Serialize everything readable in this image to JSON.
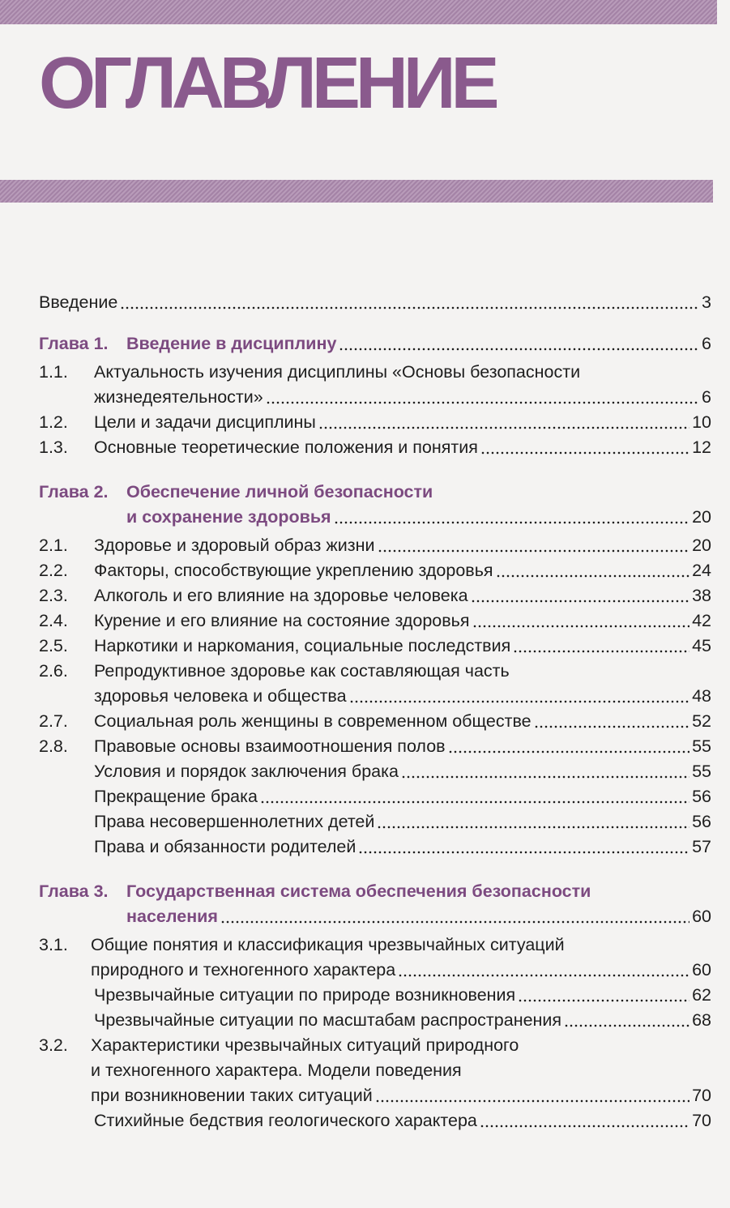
{
  "title": "ОГЛАВЛЕНИЕ",
  "accent_color": "#8a5a8d",
  "entries": [
    {
      "type": "intro",
      "num": "",
      "lines": [
        "Введение"
      ],
      "page": "3"
    },
    {
      "type": "ch",
      "num": "Глава 1.",
      "lines": [
        "Введение в дисциплину"
      ],
      "page": "6"
    },
    {
      "type": "sec",
      "num": "1.1.",
      "lines": [
        "Актуальность изучения дисциплины «Основы безопасности",
        "жизнедеятельности»"
      ],
      "page": "6"
    },
    {
      "type": "sec",
      "num": "1.2.",
      "lines": [
        "Цели и задачи дисциплины"
      ],
      "page": "10"
    },
    {
      "type": "sec",
      "num": "1.3.",
      "lines": [
        "Основные теоретические положения и понятия"
      ],
      "page": "12"
    },
    {
      "type": "ch",
      "num": "Глава 2.",
      "lines": [
        "Обеспечение личной безопасности",
        "и сохранение здоровья"
      ],
      "page": "20"
    },
    {
      "type": "sec",
      "num": "2.1.",
      "lines": [
        "Здоровье и здоровый образ жизни"
      ],
      "page": "20"
    },
    {
      "type": "sec",
      "num": "2.2.",
      "lines": [
        "Факторы, способствующие укреплению здоровья"
      ],
      "page": "24"
    },
    {
      "type": "sec",
      "num": "2.3.",
      "lines": [
        "Алкоголь и его влияние на здоровье человека"
      ],
      "page": "38"
    },
    {
      "type": "sec",
      "num": "2.4.",
      "lines": [
        "Курение и его влияние на состояние здоровья"
      ],
      "page": "42"
    },
    {
      "type": "sec",
      "num": "2.5.",
      "lines": [
        "Наркотики и наркомания, социальные последствия"
      ],
      "page": "45"
    },
    {
      "type": "sec",
      "num": "2.6.",
      "lines": [
        "Репродуктивное здоровье как составляющая часть",
        "здоровья человека и общества"
      ],
      "page": "48"
    },
    {
      "type": "sec",
      "num": "2.7.",
      "lines": [
        "Социальная роль женщины в современном обществе"
      ],
      "page": "52"
    },
    {
      "type": "sec",
      "num": "2.8.",
      "lines": [
        "Правовые основы взаимоотношения полов"
      ],
      "page": "55"
    },
    {
      "type": "sub",
      "num": "",
      "lines": [
        "Условия и порядок заключения брака"
      ],
      "page": "55"
    },
    {
      "type": "sub",
      "num": "",
      "lines": [
        "Прекращение брака"
      ],
      "page": "56"
    },
    {
      "type": "sub",
      "num": "",
      "lines": [
        "Права несовершеннолетних детей"
      ],
      "page": "56"
    },
    {
      "type": "sub",
      "num": "",
      "lines": [
        "Права и обязанности родителей"
      ],
      "page": "57"
    },
    {
      "type": "ch",
      "num": "Глава 3.",
      "lines": [
        "Государственная система обеспечения безопасности",
        "населения"
      ],
      "page": "60"
    },
    {
      "type": "sec",
      "num": "3.1.",
      "lines": [
        "Общие понятия и классификация чрезвычайных ситуаций",
        "природного и техногенного характера"
      ],
      "page": "60"
    },
    {
      "type": "sub",
      "num": "",
      "lines": [
        "Чрезвычайные ситуации по природе возникновения"
      ],
      "page": "62"
    },
    {
      "type": "sub",
      "num": "",
      "lines": [
        "Чрезвычайные ситуации по масштабам распространения"
      ],
      "page": "68"
    },
    {
      "type": "sec",
      "num": "3.2.",
      "lines": [
        "Характеристики чрезвычайных ситуаций природного",
        "и техногенного характера. Модели поведения",
        "при возникновении таких ситуаций"
      ],
      "page": "70"
    },
    {
      "type": "sub",
      "num": "",
      "lines": [
        "Стихийные бедствия геологического характера"
      ],
      "page": "70"
    }
  ]
}
